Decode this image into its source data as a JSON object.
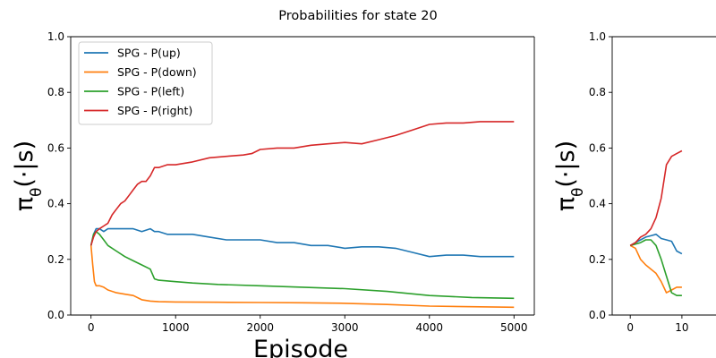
{
  "figure": {
    "suptitle": "Probabilities for state 20"
  },
  "chart_data": [
    {
      "type": "line",
      "title": "",
      "xlabel": "Episode",
      "ylabel": "π_θ(·|s)",
      "xlim": [
        -240,
        5240
      ],
      "ylim": [
        0.0,
        1.0
      ],
      "xticks": [
        0,
        1000,
        2000,
        3000,
        4000,
        5000
      ],
      "yticks": [
        0.0,
        0.2,
        0.4,
        0.6,
        0.8,
        1.0
      ],
      "xtick_labels": [
        "0",
        "1000",
        "2000",
        "3000",
        "4000",
        "5000"
      ],
      "ytick_labels": [
        "0.0",
        "0.2",
        "0.4",
        "0.6",
        "0.8",
        "1.0"
      ],
      "grid": false,
      "legend_position": "top-left",
      "series": [
        {
          "name": "SPG - P(up)",
          "color": "#1f77b4",
          "x": [
            0,
            30,
            60,
            100,
            150,
            200,
            300,
            400,
            500,
            600,
            700,
            750,
            800,
            900,
            1000,
            1200,
            1400,
            1600,
            1800,
            2000,
            2200,
            2400,
            2600,
            2800,
            3000,
            3200,
            3400,
            3600,
            3800,
            4000,
            4200,
            4400,
            4600,
            4800,
            5000
          ],
          "y": [
            0.25,
            0.29,
            0.31,
            0.31,
            0.3,
            0.31,
            0.31,
            0.31,
            0.31,
            0.3,
            0.31,
            0.3,
            0.3,
            0.29,
            0.29,
            0.29,
            0.28,
            0.27,
            0.27,
            0.27,
            0.26,
            0.26,
            0.25,
            0.25,
            0.24,
            0.245,
            0.245,
            0.24,
            0.225,
            0.21,
            0.215,
            0.215,
            0.21,
            0.21,
            0.21
          ]
        },
        {
          "name": "SPG - P(down)",
          "color": "#ff7f0e",
          "x": [
            0,
            20,
            40,
            60,
            100,
            150,
            200,
            300,
            400,
            500,
            600,
            700,
            800,
            1000,
            1500,
            2000,
            2500,
            3000,
            3500,
            4000,
            4500,
            5000
          ],
          "y": [
            0.25,
            0.18,
            0.12,
            0.105,
            0.105,
            0.1,
            0.09,
            0.08,
            0.075,
            0.07,
            0.055,
            0.05,
            0.048,
            0.047,
            0.046,
            0.045,
            0.044,
            0.042,
            0.038,
            0.032,
            0.03,
            0.028
          ]
        },
        {
          "name": "SPG - P(left)",
          "color": "#2ca02c",
          "x": [
            0,
            30,
            60,
            100,
            150,
            200,
            300,
            400,
            500,
            600,
            700,
            750,
            800,
            1000,
            1200,
            1500,
            2000,
            2500,
            3000,
            3500,
            4000,
            4500,
            5000
          ],
          "y": [
            0.25,
            0.29,
            0.3,
            0.29,
            0.27,
            0.25,
            0.23,
            0.21,
            0.195,
            0.18,
            0.165,
            0.13,
            0.125,
            0.12,
            0.115,
            0.11,
            0.105,
            0.1,
            0.095,
            0.085,
            0.07,
            0.063,
            0.06
          ]
        },
        {
          "name": "SPG - P(right)",
          "color": "#d62728",
          "x": [
            0,
            30,
            60,
            100,
            150,
            200,
            250,
            300,
            350,
            400,
            450,
            500,
            550,
            600,
            650,
            700,
            750,
            800,
            900,
            1000,
            1200,
            1400,
            1600,
            1800,
            1900,
            2000,
            2200,
            2400,
            2600,
            2800,
            3000,
            3200,
            3400,
            3600,
            3800,
            4000,
            4200,
            4400,
            4600,
            4800,
            5000
          ],
          "y": [
            0.25,
            0.28,
            0.3,
            0.31,
            0.32,
            0.33,
            0.36,
            0.38,
            0.4,
            0.41,
            0.43,
            0.45,
            0.47,
            0.48,
            0.48,
            0.5,
            0.53,
            0.53,
            0.54,
            0.54,
            0.55,
            0.565,
            0.57,
            0.575,
            0.58,
            0.595,
            0.6,
            0.6,
            0.61,
            0.615,
            0.62,
            0.615,
            0.63,
            0.645,
            0.665,
            0.685,
            0.69,
            0.69,
            0.695,
            0.695,
            0.695
          ]
        }
      ]
    },
    {
      "type": "line",
      "title": "",
      "xlabel": "",
      "ylabel": "π_θ(·|s)",
      "xlim": [
        -3.5,
        27
      ],
      "ylim": [
        0.0,
        1.0
      ],
      "xticks": [
        0,
        10
      ],
      "yticks": [
        0.0,
        0.2,
        0.4,
        0.6,
        0.8,
        1.0
      ],
      "xtick_labels": [
        "0",
        "10"
      ],
      "ytick_labels": [
        "0.0",
        "0.2",
        "0.4",
        "0.6",
        "0.8",
        "1.0"
      ],
      "grid": false,
      "series": [
        {
          "color": "#1f77b4",
          "x": [
            0,
            1,
            2,
            3,
            4,
            5,
            6,
            7,
            8,
            9,
            10
          ],
          "y": [
            0.25,
            0.26,
            0.27,
            0.28,
            0.285,
            0.29,
            0.275,
            0.27,
            0.265,
            0.23,
            0.22
          ]
        },
        {
          "color": "#ff7f0e",
          "x": [
            0,
            1,
            2,
            3,
            4,
            5,
            6,
            7,
            8,
            9,
            10
          ],
          "y": [
            0.25,
            0.24,
            0.2,
            0.18,
            0.165,
            0.15,
            0.12,
            0.08,
            0.09,
            0.1,
            0.1
          ]
        },
        {
          "color": "#2ca02c",
          "x": [
            0,
            1,
            2,
            3,
            4,
            5,
            6,
            7,
            8,
            9,
            10
          ],
          "y": [
            0.25,
            0.255,
            0.26,
            0.27,
            0.27,
            0.25,
            0.2,
            0.14,
            0.08,
            0.07,
            0.07
          ]
        },
        {
          "color": "#d62728",
          "x": [
            0,
            1,
            2,
            3,
            4,
            5,
            6,
            7,
            8,
            9,
            10
          ],
          "y": [
            0.25,
            0.26,
            0.28,
            0.29,
            0.31,
            0.35,
            0.42,
            0.54,
            0.57,
            0.58,
            0.59
          ]
        }
      ]
    }
  ]
}
